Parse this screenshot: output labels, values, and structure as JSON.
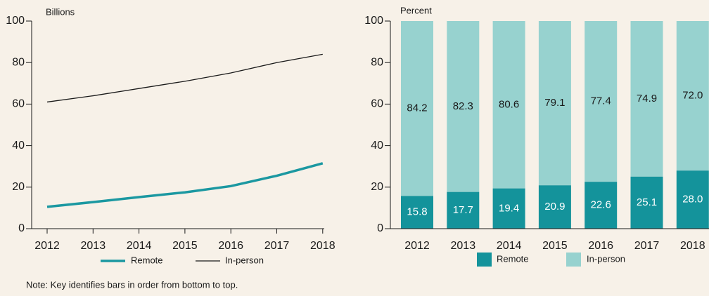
{
  "chart_data": [
    {
      "type": "line",
      "y_label": "Billions",
      "categories": [
        "2012",
        "2013",
        "2014",
        "2015",
        "2016",
        "2017",
        "2018"
      ],
      "series": [
        {
          "name": "Remote",
          "color": "#1b98a1",
          "values": [
            10.5,
            12.8,
            15.2,
            17.5,
            20.5,
            25.5,
            31.5
          ]
        },
        {
          "name": "In-person",
          "color": "#1a1a1a",
          "values": [
            61,
            64,
            67.5,
            71,
            75,
            80,
            84
          ]
        }
      ],
      "ylim": [
        0,
        100
      ],
      "yticks": [
        0,
        20,
        40,
        60,
        80,
        100
      ]
    },
    {
      "type": "bar",
      "stacked": true,
      "y_label": "Percent",
      "categories": [
        "2012",
        "2013",
        "2014",
        "2015",
        "2016",
        "2017",
        "2018"
      ],
      "series": [
        {
          "name": "Remote",
          "color": "#14939b",
          "values": [
            15.8,
            17.7,
            19.4,
            20.9,
            22.6,
            25.1,
            28.0
          ],
          "value_labels": [
            "15.8",
            "17.7",
            "19.4",
            "20.9",
            "22.6",
            "25.1",
            "28.0"
          ]
        },
        {
          "name": "In-person",
          "color": "#97d2cf",
          "values": [
            84.2,
            82.3,
            80.6,
            79.1,
            77.4,
            74.9,
            72.0
          ],
          "value_labels": [
            "84.2",
            "82.3",
            "80.6",
            "79.1",
            "77.4",
            "74.9",
            "72.0"
          ]
        }
      ],
      "ylim": [
        0,
        100
      ],
      "yticks": [
        0,
        20,
        40,
        60,
        80,
        100
      ]
    }
  ],
  "note": "Note: Key identifies bars in order from bottom to top."
}
